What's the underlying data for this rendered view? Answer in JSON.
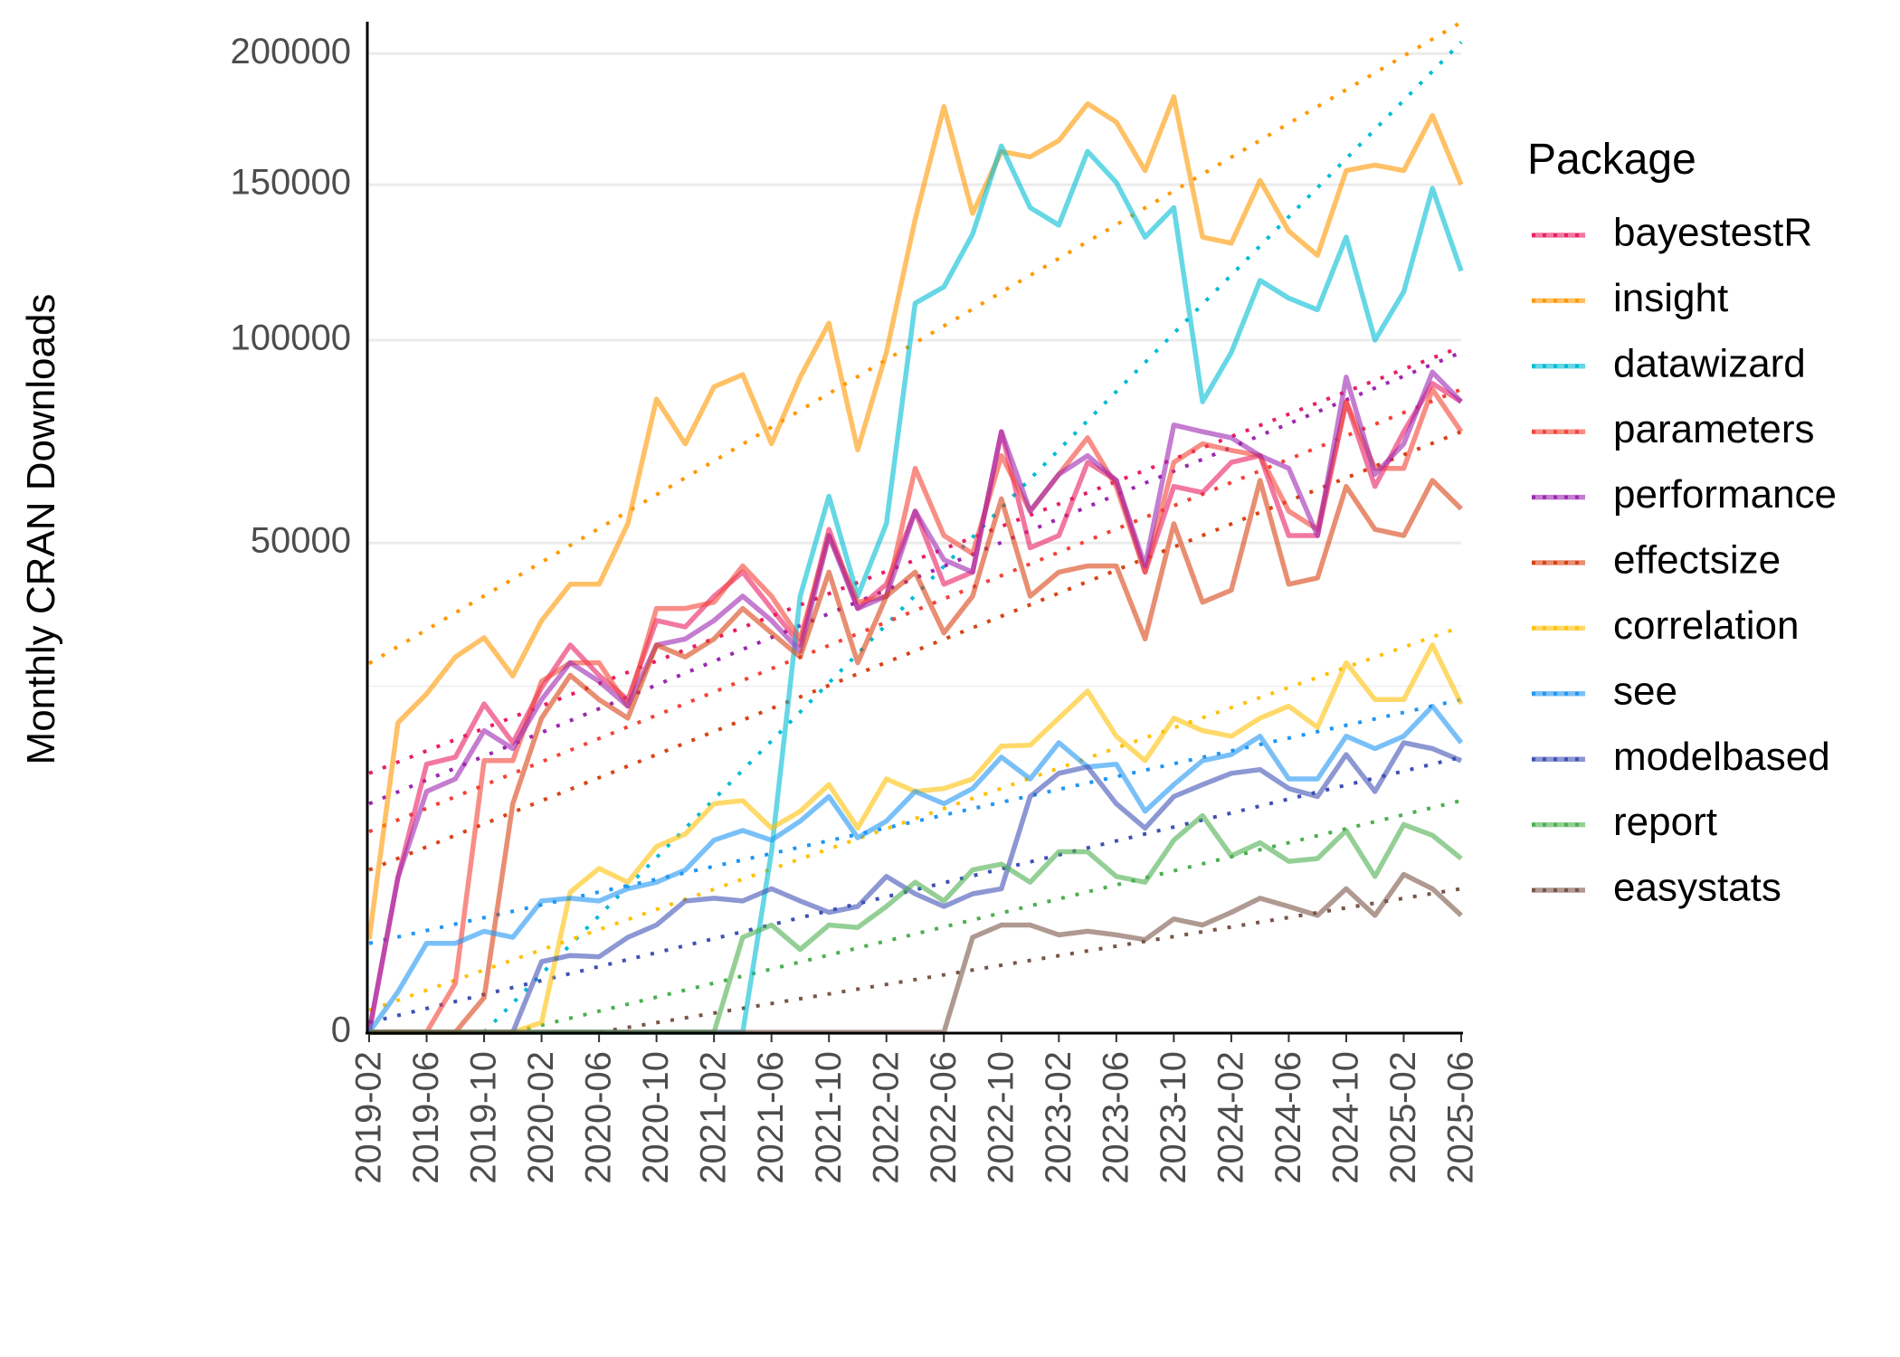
{
  "chart_data": {
    "type": "line",
    "title": "",
    "xlabel": "",
    "ylabel": "Monthly CRAN Downloads",
    "y_scale": "sqrt",
    "ylim": [
      0,
      210000
    ],
    "y_ticks": [
      0,
      50000,
      100000,
      150000,
      200000
    ],
    "y_tick_labels": [
      "0",
      "50000",
      "100000",
      "150000",
      "200000"
    ],
    "x_tick_labels": [
      "2019-02",
      "2019-06",
      "2019-10",
      "2020-02",
      "2020-06",
      "2020-10",
      "2021-02",
      "2021-06",
      "2021-10",
      "2022-02",
      "2022-06",
      "2022-10",
      "2023-02",
      "2023-06",
      "2023-10",
      "2024-02",
      "2024-06",
      "2024-10",
      "2025-02",
      "2025-06"
    ],
    "grid": "horizontal",
    "legend": {
      "title": "Package",
      "placement": "right"
    },
    "trend_lines": "dotted linear trend per package",
    "x": [
      "2019-02",
      "2019-04",
      "2019-06",
      "2019-08",
      "2019-10",
      "2019-12",
      "2020-02",
      "2020-04",
      "2020-06",
      "2020-08",
      "2020-10",
      "2020-12",
      "2021-02",
      "2021-04",
      "2021-06",
      "2021-08",
      "2021-10",
      "2021-12",
      "2022-02",
      "2022-04",
      "2022-06",
      "2022-08",
      "2022-10",
      "2022-12",
      "2023-02",
      "2023-04",
      "2023-06",
      "2023-08",
      "2023-10",
      "2023-12",
      "2024-02",
      "2024-04",
      "2024-06",
      "2024-08",
      "2024-10",
      "2024-12",
      "2025-02",
      "2025-04",
      "2025-06"
    ],
    "series": [
      {
        "name": "bayestestR",
        "color": "#E91E63",
        "values": [
          0,
          5000,
          15000,
          15800,
          22500,
          17500,
          24800,
          31300,
          26600,
          23100,
          35400,
          34300,
          39700,
          44200,
          37500,
          31300,
          52800,
          37500,
          41900,
          56700,
          41900,
          44200,
          75300,
          49000,
          51500,
          67800,
          63600,
          44200,
          62200,
          60800,
          67800,
          69400,
          51500,
          51500,
          83000,
          62200,
          75300,
          87900,
          83000
        ],
        "trend": {
          "from": "2019-02",
          "start": 14000,
          "end": 98100
        }
      },
      {
        "name": "insight",
        "color": "#FF9800",
        "values": [
          1800,
          20000,
          23900,
          29400,
          32500,
          26500,
          35400,
          41900,
          41900,
          54000,
          83700,
          72300,
          87000,
          90300,
          72300,
          89600,
          105000,
          70800,
          96500,
          138000,
          178900,
          140000,
          162000,
          160000,
          166000,
          180000,
          173000,
          155000,
          182700,
          132000,
          130000,
          151500,
          134000,
          126000,
          155000,
          157000,
          155000,
          175500,
          150000
        ],
        "trend": {
          "from": "2019-02",
          "start": 28400,
          "end": 213000
        }
      },
      {
        "name": "datawizard",
        "color": "#00BCD4",
        "values": [
          0,
          0,
          0,
          0,
          0,
          0,
          0,
          0,
          0,
          0,
          0,
          0,
          0,
          0,
          6800,
          39700,
          60000,
          39700,
          54000,
          111000,
          116000,
          133000,
          164000,
          142000,
          136000,
          162000,
          150800,
          132000,
          142000,
          83000,
          96500,
          118000,
          112500,
          109000,
          132000,
          100000,
          114500,
          148700,
          121000
        ],
        "trend": {
          "from": "2019-10",
          "start": 0,
          "end": 204700
        }
      },
      {
        "name": "parameters",
        "color": "#F44336",
        "values": [
          0,
          0,
          0,
          500,
          15400,
          15400,
          25700,
          28500,
          28500,
          22200,
          37500,
          37500,
          38600,
          45400,
          39700,
          32300,
          51500,
          38600,
          39700,
          66400,
          51500,
          47800,
          69400,
          56700,
          65000,
          73800,
          62200,
          44200,
          67800,
          72300,
          70700,
          69400,
          56700,
          52800,
          83000,
          66400,
          66400,
          86300,
          75300
        ],
        "trend": {
          "from": "2019-02",
          "start": 8400,
          "end": 86300
        }
      },
      {
        "name": "performance",
        "color": "#9C27B0",
        "values": [
          0,
          5000,
          12100,
          13400,
          19000,
          16800,
          23100,
          28500,
          25700,
          22200,
          31300,
          32300,
          35400,
          39700,
          35400,
          30300,
          51500,
          37500,
          39700,
          56700,
          46600,
          44200,
          75300,
          56700,
          65000,
          69400,
          63600,
          45400,
          77000,
          75300,
          73800,
          69400,
          66400,
          51500,
          89600,
          65000,
          72300,
          91000,
          83000
        ],
        "trend": {
          "from": "2019-02",
          "start": 10900,
          "end": 96500
        }
      },
      {
        "name": "effectsize",
        "color": "#D84315",
        "values": [
          0,
          0,
          0,
          0,
          250,
          10900,
          20600,
          26600,
          23100,
          20600,
          31300,
          29400,
          32300,
          37500,
          33300,
          29400,
          44200,
          28500,
          39700,
          44200,
          33300,
          39700,
          59400,
          39700,
          44200,
          45400,
          45400,
          32300,
          54000,
          38600,
          40800,
          63600,
          41900,
          43100,
          62200,
          52800,
          51500,
          63600,
          57200
        ],
        "trend": {
          "from": "2019-02",
          "start": 5500,
          "end": 75300
        }
      },
      {
        "name": "correlation",
        "color": "#FFC107",
        "values": [
          0,
          0,
          0,
          0,
          0,
          0,
          20,
          4100,
          5600,
          4700,
          7200,
          8200,
          10900,
          11200,
          8700,
          10200,
          12800,
          8700,
          13400,
          12100,
          12400,
          13400,
          17100,
          17200,
          20600,
          24300,
          18300,
          15400,
          20600,
          19000,
          18300,
          20600,
          22200,
          19400,
          28500,
          23100,
          23100,
          31300,
          22500
        ],
        "trend": {
          "from": "2019-02",
          "start": 100,
          "end": 34300
        }
      },
      {
        "name": "see",
        "color": "#2196F3",
        "values": [
          0,
          340,
          1650,
          1650,
          2130,
          1880,
          3600,
          3750,
          3600,
          4300,
          4700,
          5500,
          7700,
          8500,
          7700,
          9300,
          11600,
          7900,
          9300,
          12100,
          10900,
          12400,
          15800,
          13400,
          17500,
          14700,
          15000,
          10200,
          12800,
          15400,
          16100,
          18300,
          13400,
          13400,
          18300,
          16800,
          18300,
          22200,
          17500
        ],
        "trend": {
          "from": "2019-02",
          "start": 1650,
          "end": 23100
        }
      },
      {
        "name": "modelbased",
        "color": "#3F51B5",
        "values": [
          0,
          0,
          0,
          0,
          0,
          0,
          1040,
          1230,
          1190,
          1880,
          2400,
          3600,
          3750,
          3600,
          4300,
          3600,
          3000,
          3300,
          5070,
          4000,
          3300,
          4000,
          4300,
          11600,
          14000,
          14700,
          10900,
          8700,
          11600,
          12800,
          14000,
          14400,
          12400,
          11600,
          16100,
          12100,
          17500,
          16800,
          15400
        ],
        "trend": {
          "from": "2019-02",
          "start": 20,
          "end": 15800
        }
      },
      {
        "name": "report",
        "color": "#4CAF50",
        "values": [
          0,
          0,
          0,
          0,
          0,
          0,
          0,
          0,
          0,
          0,
          0,
          0,
          0,
          1880,
          2400,
          1430,
          2400,
          2290,
          3300,
          4700,
          3600,
          5500,
          5900,
          4700,
          6800,
          6800,
          5070,
          4700,
          7700,
          9800,
          6500,
          7500,
          6100,
          6300,
          8500,
          5070,
          9000,
          8100,
          6300
        ],
        "trend": {
          "from": "2019-12",
          "start": 0,
          "end": 11200
        }
      },
      {
        "name": "easystats",
        "color": "#795548",
        "values": [
          0,
          0,
          0,
          0,
          0,
          0,
          0,
          0,
          0,
          0,
          0,
          0,
          0,
          0,
          0,
          0,
          0,
          0,
          0,
          0,
          0,
          1880,
          2400,
          2400,
          1980,
          2130,
          1980,
          1790,
          2680,
          2400,
          3000,
          3750,
          3300,
          2850,
          4300,
          2850,
          5200,
          4300,
          2850
        ],
        "trend": {
          "from": "2020-06",
          "start": 0,
          "end": 4300
        }
      }
    ]
  }
}
